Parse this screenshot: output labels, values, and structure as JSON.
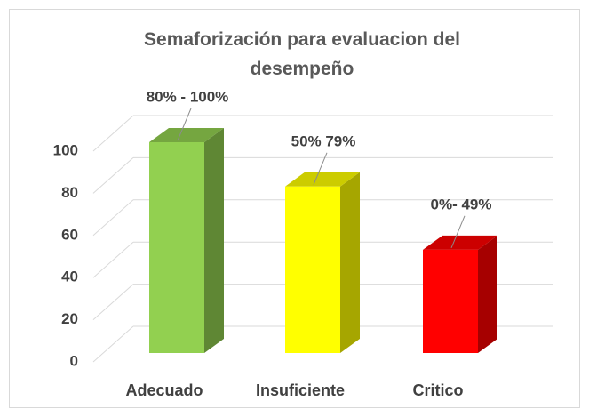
{
  "chart_data": {
    "type": "bar3d",
    "title": "Semaforización para evaluacion del desempeño",
    "categories": [
      "Adecuado",
      "Insuficiente",
      "Critico"
    ],
    "values": [
      100,
      79,
      49
    ],
    "colors": [
      "#92d050",
      "#ffff00",
      "#ff0000"
    ],
    "annotations": [
      "80% - 100%",
      "50% 79%",
      "0%- 49%"
    ],
    "ylim": [
      0,
      100
    ],
    "yticks": [
      0,
      20,
      40,
      60,
      80,
      100
    ],
    "grid": true
  }
}
